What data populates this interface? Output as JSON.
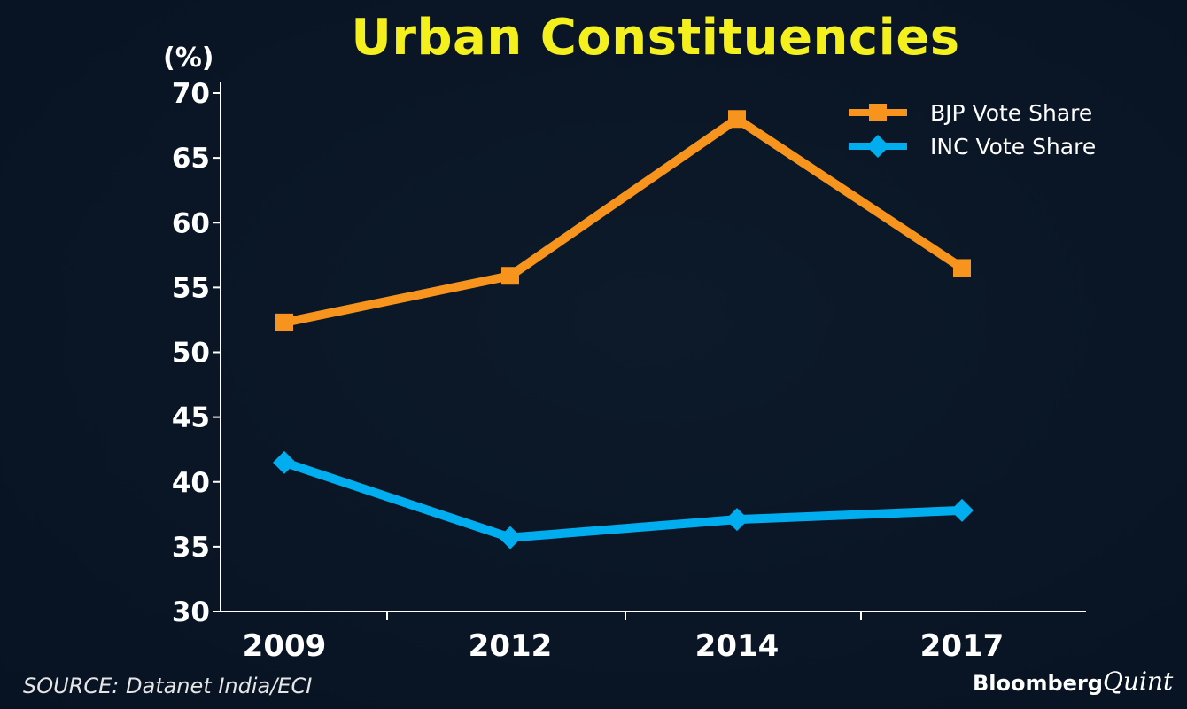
{
  "chart_data": {
    "type": "line",
    "title": "Urban Constituencies",
    "ylabel": "(%)",
    "xlabel": "",
    "categories": [
      "2009",
      "2012",
      "2014",
      "2017"
    ],
    "ylim": [
      30,
      70
    ],
    "yticks": [
      30,
      35,
      40,
      45,
      50,
      55,
      60,
      65,
      70
    ],
    "legend_position": "top-right",
    "series": [
      {
        "name": "BJP Vote Share",
        "values": [
          52.3,
          55.9,
          68.0,
          56.5
        ],
        "color": "#f7941d",
        "marker": "square"
      },
      {
        "name": "INC Vote Share",
        "values": [
          41.5,
          35.7,
          37.1,
          37.8
        ],
        "color": "#00aeef",
        "marker": "diamond"
      }
    ]
  },
  "footer": {
    "source": "SOURCE: Datanet India/ECI",
    "brand": "Bloomberg",
    "brand_secondary": "Quint"
  },
  "colors": {
    "background": "#0a1626",
    "title": "#f4f01e",
    "axis": "#ffffff"
  }
}
